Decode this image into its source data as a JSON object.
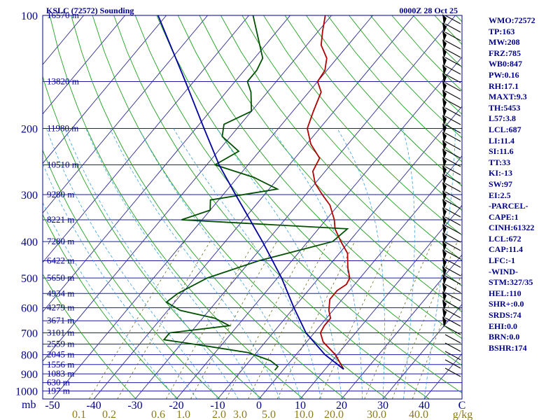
{
  "chart_data": {
    "type": "line",
    "title": "KSLC (72572) Sounding",
    "valid_time": "0000Z 28 Oct 25",
    "pressure_ticks": [
      "100",
      "200",
      "300",
      "400",
      "500",
      "600",
      "700",
      "800",
      "900",
      "1000"
    ],
    "pressure_unit": "mb",
    "temperature_ticks": [
      "-50",
      "-40",
      "-30",
      "-20",
      "-10",
      "0",
      "10",
      "20",
      "30",
      "40"
    ],
    "temperature_unit": "C",
    "mixing_ratio_ticks": [
      "0.1",
      "0.2",
      "0.6",
      "1.0",
      "2.0",
      "3.0",
      "5.0",
      "10.0",
      "20.0",
      "30.0",
      "40.0"
    ],
    "mixing_ratio_unit": "g/kg",
    "height_labels": [
      {
        "p": 100,
        "label": "16570 m"
      },
      {
        "p": 150,
        "label": "13820 m"
      },
      {
        "p": 200,
        "label": "11980 m"
      },
      {
        "p": 250,
        "label": "10510 m"
      },
      {
        "p": 300,
        "label": "9280 m"
      },
      {
        "p": 350,
        "label": "8221 m"
      },
      {
        "p": 400,
        "label": "7280 m"
      },
      {
        "p": 450,
        "label": "6422 m"
      },
      {
        "p": 500,
        "label": "5650 m"
      },
      {
        "p": 550,
        "label": "4934 m"
      },
      {
        "p": 600,
        "label": "4279 m"
      },
      {
        "p": 650,
        "label": "3671 m"
      },
      {
        "p": 700,
        "label": "3101 m"
      },
      {
        "p": 750,
        "label": "2559 m"
      },
      {
        "p": 800,
        "label": "2045 m"
      },
      {
        "p": 850,
        "label": "1556 m"
      },
      {
        "p": 900,
        "label": "1083 m"
      },
      {
        "p": 950,
        "label": "630 m"
      },
      {
        "p": 1000,
        "label": "197 m"
      }
    ],
    "series": [
      {
        "color": "#b00000",
        "points": [
          {
            "p": 875,
            "t": 14.5
          },
          {
            "p": 800,
            "t": 9.5
          },
          {
            "p": 740,
            "t": 4.0
          },
          {
            "p": 700,
            "t": 1.5
          },
          {
            "p": 670,
            "t": 1.0
          },
          {
            "p": 640,
            "t": 1.0
          },
          {
            "p": 610,
            "t": -1.0
          },
          {
            "p": 570,
            "t": -3.0
          },
          {
            "p": 540,
            "t": -3.0
          },
          {
            "p": 520,
            "t": -2.0
          },
          {
            "p": 500,
            "t": -2.5
          },
          {
            "p": 470,
            "t": -5.0
          },
          {
            "p": 430,
            "t": -8.0
          },
          {
            "p": 400,
            "t": -12.0
          },
          {
            "p": 370,
            "t": -16.0
          },
          {
            "p": 350,
            "t": -18.0
          },
          {
            "p": 320,
            "t": -22.0
          },
          {
            "p": 300,
            "t": -26.0
          },
          {
            "p": 280,
            "t": -30.0
          },
          {
            "p": 260,
            "t": -33.0
          },
          {
            "p": 250,
            "t": -33.5
          },
          {
            "p": 240,
            "t": -34.0
          },
          {
            "p": 220,
            "t": -39.0
          },
          {
            "p": 200,
            "t": -43.0
          },
          {
            "p": 180,
            "t": -45.0
          },
          {
            "p": 160,
            "t": -47.0
          },
          {
            "p": 150,
            "t": -50.0
          },
          {
            "p": 140,
            "t": -50.5
          },
          {
            "p": 130,
            "t": -52.5
          },
          {
            "p": 120,
            "t": -56.5
          },
          {
            "p": 110,
            "t": -59.0
          },
          {
            "p": 100,
            "t": -61.5
          }
        ]
      },
      {
        "color": "#005000",
        "points": [
          {
            "p": 880,
            "t": -2.0
          },
          {
            "p": 860,
            "t": -2.0
          },
          {
            "p": 830,
            "t": -5.0
          },
          {
            "p": 790,
            "t": -12.0
          },
          {
            "p": 760,
            "t": -23.0
          },
          {
            "p": 730,
            "t": -35.0
          },
          {
            "p": 700,
            "t": -35.0
          },
          {
            "p": 670,
            "t": -22.0
          },
          {
            "p": 640,
            "t": -27.0
          },
          {
            "p": 610,
            "t": -37.0
          },
          {
            "p": 580,
            "t": -42.0
          },
          {
            "p": 550,
            "t": -41.0
          },
          {
            "p": 500,
            "t": -37.0
          },
          {
            "p": 450,
            "t": -28.0
          },
          {
            "p": 400,
            "t": -14.0
          },
          {
            "p": 370,
            "t": -13.0
          },
          {
            "p": 350,
            "t": -55.0
          },
          {
            "p": 330,
            "t": -50.0
          },
          {
            "p": 310,
            "t": -52.0
          },
          {
            "p": 290,
            "t": -38.0
          },
          {
            "p": 270,
            "t": -46.0
          },
          {
            "p": 250,
            "t": -58.0
          },
          {
            "p": 230,
            "t": -55.0
          },
          {
            "p": 210,
            "t": -62.0
          },
          {
            "p": 195,
            "t": -64.0
          },
          {
            "p": 180,
            "t": -60.0
          },
          {
            "p": 160,
            "t": -64.0
          },
          {
            "p": 150,
            "t": -67.0
          },
          {
            "p": 140,
            "t": -67.0
          },
          {
            "p": 130,
            "t": -68.0
          },
          {
            "p": 100,
            "t": -79.0
          }
        ]
      },
      {
        "color": "#0000a0",
        "points": [
          {
            "p": 875,
            "t": 14.5
          },
          {
            "p": 800,
            "t": 7.0
          },
          {
            "p": 700,
            "t": -2.0
          },
          {
            "p": 600,
            "t": -10.0
          },
          {
            "p": 500,
            "t": -19.0
          },
          {
            "p": 400,
            "t": -31.0
          },
          {
            "p": 300,
            "t": -47.0
          },
          {
            "p": 250,
            "t": -57.0
          },
          {
            "p": 200,
            "t": -68.0
          },
          {
            "p": 150,
            "t": -82.0
          },
          {
            "p": 100,
            "t": -102.0
          }
        ]
      }
    ],
    "grid": true
  },
  "indices": [
    "WMO:72572",
    "TP:163",
    "MW:208",
    "FRZ:785",
    "WB0:847",
    "PW:0.16",
    "RH:17.1",
    "MAXT:9.3",
    "TH:5453",
    "L57:3.8",
    "LCL:687",
    "LI:11.4",
    "SI:11.6",
    "TT:33",
    "KI:-13",
    "SW:97",
    "EI:2.5",
    "-PARCEL-",
    "CAPE:1",
    "CINH:61322",
    "LCL:672",
    "CAP:11.4",
    "LFC:-1",
    "-WIND-",
    "STM:327/35",
    "HEL:110",
    "SHR+:0.0",
    "SRDS:74",
    "EHI:0.0",
    "BRN:0.0",
    "BSHR:174"
  ],
  "colors": {
    "frame": "#00008b",
    "isobar": "#1a1aa6",
    "isotherm": "#2a2a9a",
    "dry_adiabat": "#22a022",
    "moist_adiabat": "#3aa0e0",
    "mixing_ratio": "#6b6b22",
    "mixing_label": "#8b7a1a"
  }
}
